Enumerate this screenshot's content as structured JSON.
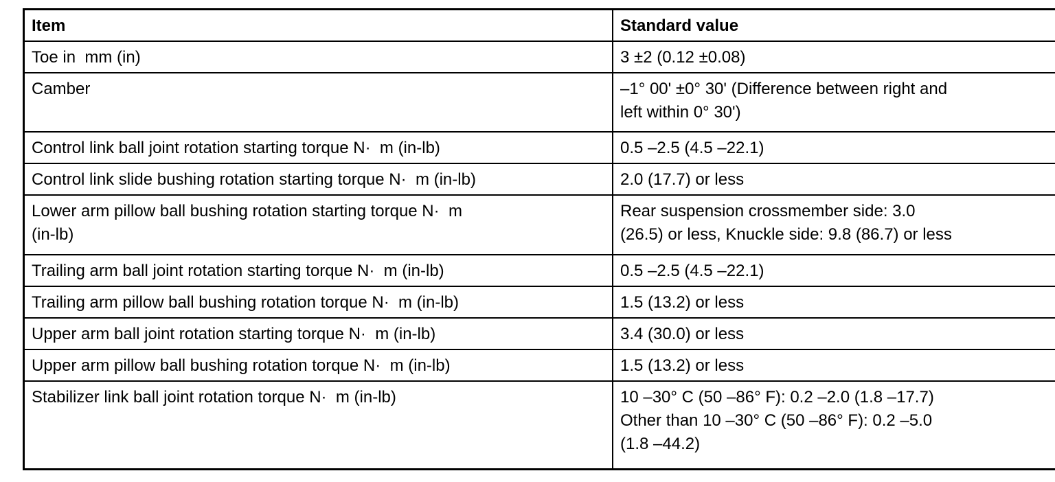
{
  "table": {
    "columns": {
      "item_header": "Item",
      "value_header": "Standard value"
    },
    "rows": [
      {
        "item": "Toe in  mm (in)",
        "value": "3 ±2 (0.12 ±0.08)"
      },
      {
        "item": "Camber",
        "value": "–1° 00' ±0° 30' (Difference between right and\nleft within 0° 30')"
      },
      {
        "item": "Control link ball joint rotation starting torque N·  m (in-lb)",
        "value": "0.5 –2.5 (4.5 –22.1)"
      },
      {
        "item": "Control link slide bushing rotation starting torque N·  m (in-lb)",
        "value": "2.0 (17.7) or less"
      },
      {
        "item": "Lower arm pillow ball bushing rotation starting torque N·  m\n(in-lb)",
        "value": "Rear suspension crossmember side: 3.0\n(26.5) or less, Knuckle side: 9.8 (86.7) or less"
      },
      {
        "item": "Trailing arm ball joint rotation starting torque N·  m (in-lb)",
        "value": "0.5 –2.5 (4.5 –22.1)"
      },
      {
        "item": "Trailing arm pillow ball bushing rotation torque N·  m (in-lb)",
        "value": "1.5 (13.2) or less"
      },
      {
        "item": "Upper arm ball joint rotation starting torque N·  m (in-lb)",
        "value": "3.4 (30.0) or less"
      },
      {
        "item": "Upper arm pillow ball bushing rotation torque N·  m (in-lb)",
        "value": "1.5 (13.2) or less"
      },
      {
        "item": "Stabilizer link ball joint rotation torque N·  m (in-lb)",
        "value": "10 –30° C (50 –86° F): 0.2 –2.0 (1.8 –17.7)\nOther than 10 –30° C (50 –86° F): 0.2 –5.0\n(1.8 –44.2)"
      }
    ]
  }
}
